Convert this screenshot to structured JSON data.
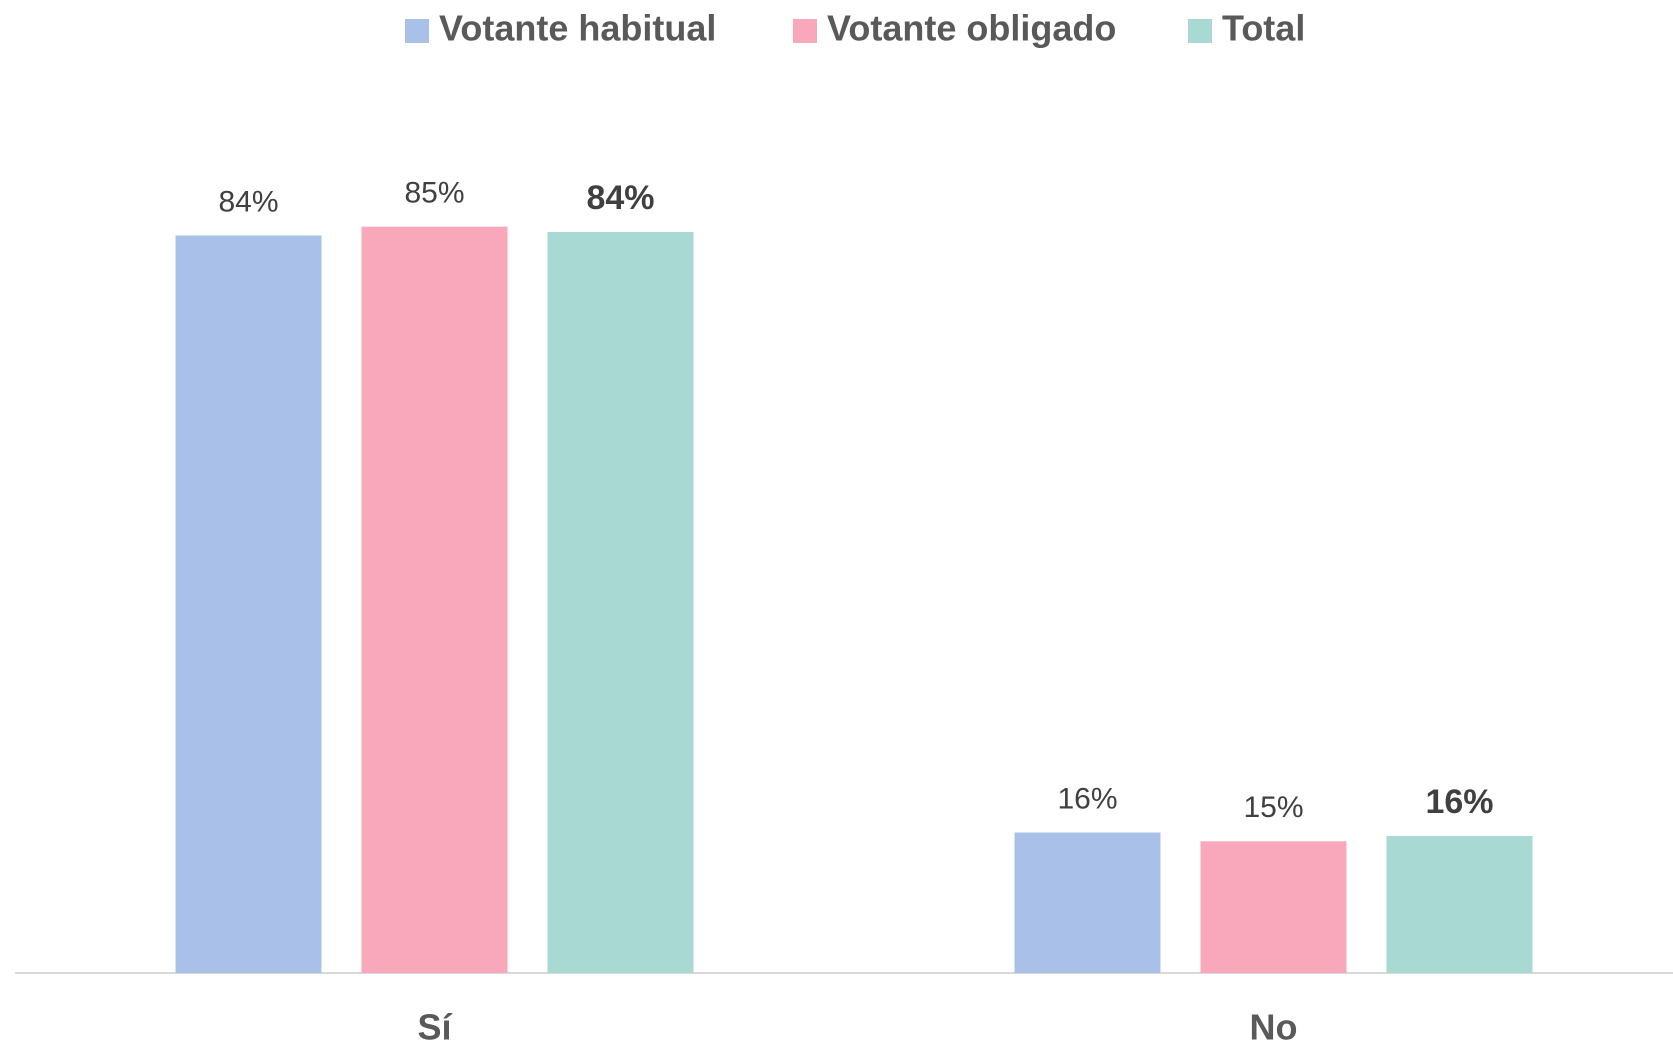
{
  "chart_data": {
    "type": "bar",
    "categories": [
      "Sí",
      "No"
    ],
    "series": [
      {
        "name": "Votante habitual",
        "color": "#a9c1e8",
        "values": [
          84,
          16
        ],
        "value_labels": [
          "84%",
          "16%"
        ]
      },
      {
        "name": "Votante obligado",
        "color": "#f8a8ba",
        "values": [
          85,
          15
        ],
        "value_labels": [
          "85%",
          "15%"
        ]
      },
      {
        "name": "Total",
        "color": "#a8dad3",
        "values": [
          84.4,
          15.6
        ],
        "value_labels": [
          "84%",
          "16%"
        ]
      }
    ],
    "ylim": [
      0,
      100
    ],
    "legend": "top"
  }
}
